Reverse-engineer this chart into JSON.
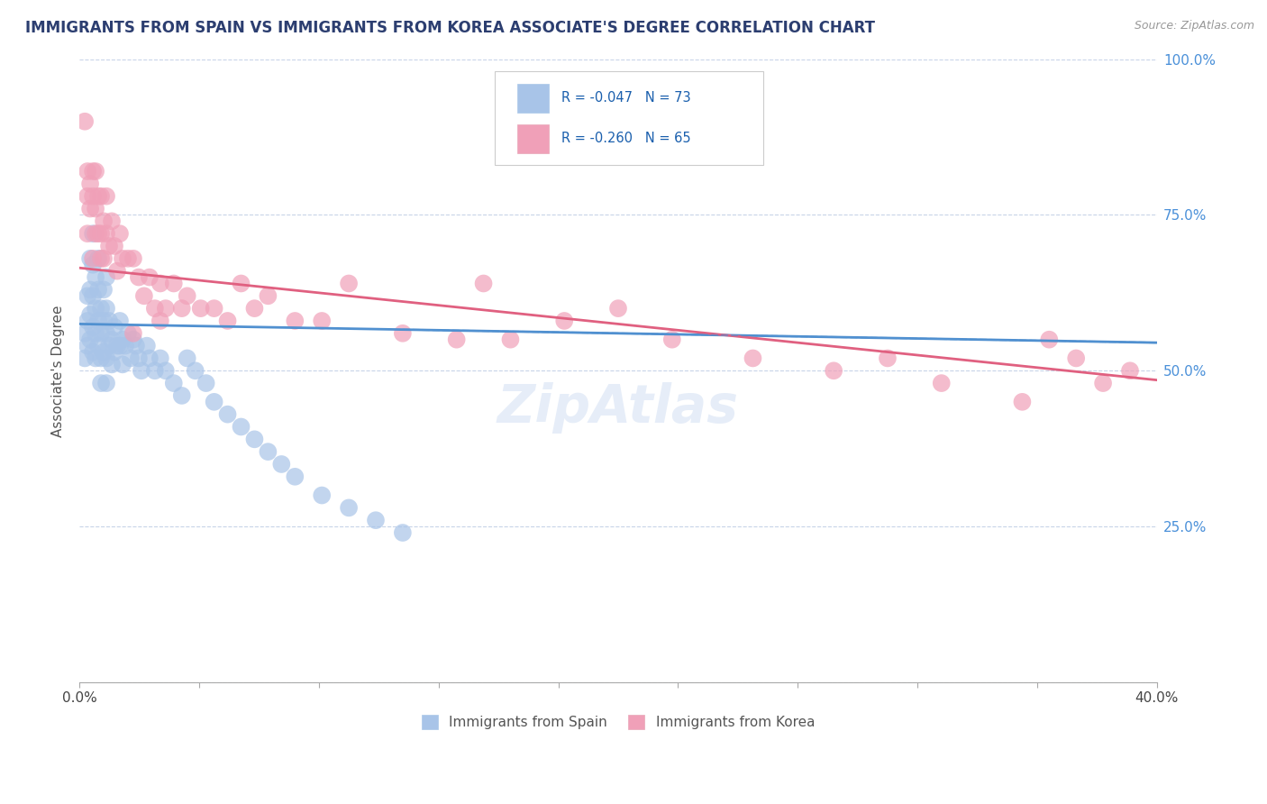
{
  "title": "IMMIGRANTS FROM SPAIN VS IMMIGRANTS FROM KOREA ASSOCIATE'S DEGREE CORRELATION CHART",
  "source": "Source: ZipAtlas.com",
  "ylabel": "Associate's Degree",
  "xmin": 0.0,
  "xmax": 0.4,
  "ymin": 0.0,
  "ymax": 1.0,
  "R_spain": -0.047,
  "N_spain": 73,
  "R_korea": -0.26,
  "N_korea": 65,
  "color_spain": "#a8c4e8",
  "color_korea": "#f0a0b8",
  "line_color_spain": "#5090d0",
  "line_color_korea": "#e06080",
  "background_color": "#ffffff",
  "grid_color": "#c8d4e8",
  "title_color": "#2c3e70",
  "source_color": "#999999",
  "legend_labels": [
    "Immigrants from Spain",
    "Immigrants from Korea"
  ],
  "spain_x": [
    0.002,
    0.002,
    0.003,
    0.003,
    0.003,
    0.004,
    0.004,
    0.004,
    0.004,
    0.005,
    0.005,
    0.005,
    0.005,
    0.005,
    0.006,
    0.006,
    0.006,
    0.006,
    0.007,
    0.007,
    0.007,
    0.007,
    0.008,
    0.008,
    0.008,
    0.008,
    0.009,
    0.009,
    0.009,
    0.01,
    0.01,
    0.01,
    0.01,
    0.01,
    0.011,
    0.011,
    0.012,
    0.012,
    0.013,
    0.013,
    0.014,
    0.015,
    0.015,
    0.016,
    0.016,
    0.017,
    0.018,
    0.019,
    0.02,
    0.021,
    0.022,
    0.023,
    0.025,
    0.026,
    0.028,
    0.03,
    0.032,
    0.035,
    0.038,
    0.04,
    0.043,
    0.047,
    0.05,
    0.055,
    0.06,
    0.065,
    0.07,
    0.075,
    0.08,
    0.09,
    0.1,
    0.11,
    0.12
  ],
  "spain_y": [
    0.56,
    0.52,
    0.62,
    0.58,
    0.54,
    0.68,
    0.63,
    0.59,
    0.55,
    0.72,
    0.67,
    0.62,
    0.57,
    0.53,
    0.65,
    0.6,
    0.56,
    0.52,
    0.68,
    0.63,
    0.58,
    0.54,
    0.6,
    0.56,
    0.52,
    0.48,
    0.63,
    0.58,
    0.53,
    0.65,
    0.6,
    0.56,
    0.52,
    0.48,
    0.58,
    0.54,
    0.55,
    0.51,
    0.57,
    0.53,
    0.54,
    0.58,
    0.54,
    0.55,
    0.51,
    0.54,
    0.56,
    0.52,
    0.55,
    0.54,
    0.52,
    0.5,
    0.54,
    0.52,
    0.5,
    0.52,
    0.5,
    0.48,
    0.46,
    0.52,
    0.5,
    0.48,
    0.45,
    0.43,
    0.41,
    0.39,
    0.37,
    0.35,
    0.33,
    0.3,
    0.28,
    0.26,
    0.24
  ],
  "korea_x": [
    0.002,
    0.003,
    0.003,
    0.003,
    0.004,
    0.004,
    0.005,
    0.005,
    0.005,
    0.006,
    0.006,
    0.006,
    0.007,
    0.007,
    0.008,
    0.008,
    0.008,
    0.009,
    0.009,
    0.01,
    0.01,
    0.011,
    0.012,
    0.013,
    0.014,
    0.015,
    0.016,
    0.018,
    0.02,
    0.022,
    0.024,
    0.026,
    0.028,
    0.03,
    0.032,
    0.035,
    0.038,
    0.04,
    0.045,
    0.05,
    0.055,
    0.06,
    0.065,
    0.07,
    0.08,
    0.09,
    0.1,
    0.12,
    0.14,
    0.15,
    0.16,
    0.18,
    0.2,
    0.22,
    0.25,
    0.28,
    0.3,
    0.32,
    0.35,
    0.36,
    0.37,
    0.38,
    0.39,
    0.03,
    0.02
  ],
  "korea_y": [
    0.9,
    0.82,
    0.78,
    0.72,
    0.8,
    0.76,
    0.82,
    0.78,
    0.68,
    0.82,
    0.76,
    0.72,
    0.78,
    0.72,
    0.78,
    0.72,
    0.68,
    0.74,
    0.68,
    0.78,
    0.72,
    0.7,
    0.74,
    0.7,
    0.66,
    0.72,
    0.68,
    0.68,
    0.68,
    0.65,
    0.62,
    0.65,
    0.6,
    0.64,
    0.6,
    0.64,
    0.6,
    0.62,
    0.6,
    0.6,
    0.58,
    0.64,
    0.6,
    0.62,
    0.58,
    0.58,
    0.64,
    0.56,
    0.55,
    0.64,
    0.55,
    0.58,
    0.6,
    0.55,
    0.52,
    0.5,
    0.52,
    0.48,
    0.45,
    0.55,
    0.52,
    0.48,
    0.5,
    0.58,
    0.56
  ],
  "spain_trendline_x": [
    0.0,
    0.4
  ],
  "spain_trendline_y": [
    0.575,
    0.545
  ],
  "korea_trendline_x": [
    0.0,
    0.4
  ],
  "korea_trendline_y": [
    0.665,
    0.485
  ]
}
